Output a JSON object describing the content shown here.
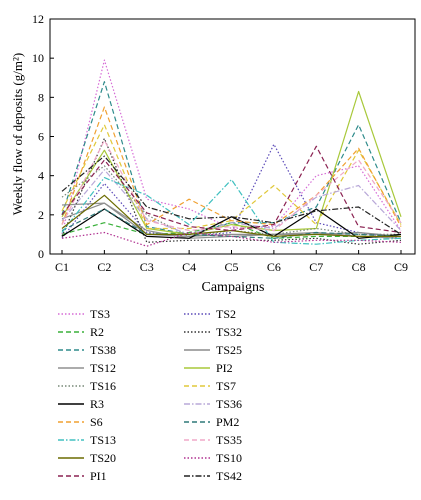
{
  "chart_data": {
    "type": "line",
    "ylabel": "Weekly flow of deposits (g/m²)",
    "xlabel": "Campaigns",
    "ylim": [
      0,
      12
    ],
    "yticks": [
      0,
      2,
      4,
      6,
      8,
      10,
      12
    ],
    "categories": [
      "C1",
      "C2",
      "C3",
      "C4",
      "C5",
      "C6",
      "C7",
      "C8",
      "C9"
    ],
    "legend_position": "below",
    "series": [
      {
        "name": "TS3",
        "color": "#d66cd6",
        "style": "dotted",
        "values": [
          1.0,
          9.9,
          2.8,
          2.3,
          1.3,
          1.4,
          4.0,
          4.5,
          1.2
        ]
      },
      {
        "name": "TS2",
        "color": "#5b4ab8",
        "style": "dotted",
        "values": [
          0.8,
          3.6,
          1.1,
          0.9,
          1.1,
          5.6,
          1.6,
          1.1,
          0.8
        ]
      },
      {
        "name": "R2",
        "color": "#3ab03a",
        "style": "dashed",
        "values": [
          1.0,
          1.6,
          1.0,
          1.1,
          1.6,
          0.8,
          0.9,
          0.9,
          0.8
        ]
      },
      {
        "name": "TS32",
        "color": "#333333",
        "style": "dotted",
        "values": [
          0.9,
          5.9,
          0.6,
          0.7,
          0.7,
          0.7,
          0.8,
          0.5,
          0.7
        ]
      },
      {
        "name": "TS38",
        "color": "#2e8b8b",
        "style": "dashed",
        "values": [
          2.0,
          8.8,
          1.4,
          1.0,
          1.6,
          1.6,
          2.4,
          6.6,
          1.6
        ]
      },
      {
        "name": "TS25",
        "color": "#8c8c8c",
        "style": "solid",
        "values": [
          1.8,
          2.6,
          1.0,
          0.9,
          1.0,
          1.0,
          1.0,
          1.1,
          0.9
        ]
      },
      {
        "name": "TS12",
        "color": "#909090",
        "style": "solid",
        "values": [
          2.5,
          2.6,
          1.2,
          0.8,
          0.9,
          1.0,
          1.1,
          0.9,
          0.8
        ]
      },
      {
        "name": "PI2",
        "color": "#a8c83a",
        "style": "solid",
        "values": [
          1.9,
          5.3,
          1.3,
          1.0,
          1.5,
          1.2,
          1.3,
          8.3,
          1.9
        ]
      },
      {
        "name": "TS16",
        "color": "#778877",
        "style": "dotted",
        "values": [
          2.9,
          4.5,
          2.0,
          0.9,
          1.2,
          1.0,
          1.3,
          1.0,
          1.0
        ]
      },
      {
        "name": "TS7",
        "color": "#e0c83a",
        "style": "dashed",
        "values": [
          2.2,
          6.6,
          1.3,
          1.3,
          1.7,
          3.5,
          1.5,
          5.3,
          1.5
        ]
      },
      {
        "name": "R3",
        "color": "#000000",
        "style": "solid",
        "values": [
          0.9,
          2.3,
          0.9,
          0.8,
          1.9,
          0.9,
          2.3,
          0.8,
          1.0
        ]
      },
      {
        "name": "TS36",
        "color": "#b8a8d8",
        "style": "dashdot",
        "values": [
          1.7,
          4.3,
          1.8,
          1.0,
          1.6,
          1.3,
          2.9,
          3.5,
          1.2
        ]
      },
      {
        "name": "S6",
        "color": "#f0a030",
        "style": "dashed",
        "values": [
          1.5,
          7.5,
          1.5,
          2.8,
          1.7,
          1.5,
          3.0,
          5.4,
          1.4
        ]
      },
      {
        "name": "PM2",
        "color": "#2e7878",
        "style": "dashed",
        "values": [
          1.2,
          2.3,
          1.0,
          1.0,
          0.9,
          0.8,
          1.1,
          1.0,
          0.9
        ]
      },
      {
        "name": "TS13",
        "color": "#40c0c0",
        "style": "dashdot",
        "values": [
          1.1,
          3.9,
          3.0,
          1.5,
          3.8,
          0.6,
          0.5,
          0.7,
          0.8
        ]
      },
      {
        "name": "TS35",
        "color": "#f0a8c8",
        "style": "dashed",
        "values": [
          1.5,
          5.8,
          1.7,
          1.2,
          1.4,
          1.2,
          3.0,
          4.8,
          1.6
        ]
      },
      {
        "name": "TS20",
        "color": "#6b6b00",
        "style": "solid",
        "values": [
          1.3,
          3.0,
          1.0,
          1.0,
          1.2,
          0.9,
          1.0,
          0.9,
          0.9
        ]
      },
      {
        "name": "TS10",
        "color": "#b03090",
        "style": "dotted",
        "values": [
          0.8,
          1.1,
          0.4,
          1.1,
          0.9,
          0.6,
          0.7,
          0.7,
          0.6
        ]
      },
      {
        "name": "PI1",
        "color": "#8b2252",
        "style": "dashed",
        "values": [
          2.0,
          4.8,
          2.1,
          1.4,
          1.2,
          1.5,
          5.5,
          1.4,
          1.1
        ]
      },
      {
        "name": "TS42",
        "color": "#222222",
        "style": "dashdot",
        "values": [
          3.2,
          5.0,
          2.4,
          1.8,
          1.9,
          1.6,
          2.2,
          2.4,
          1.0
        ]
      }
    ]
  }
}
